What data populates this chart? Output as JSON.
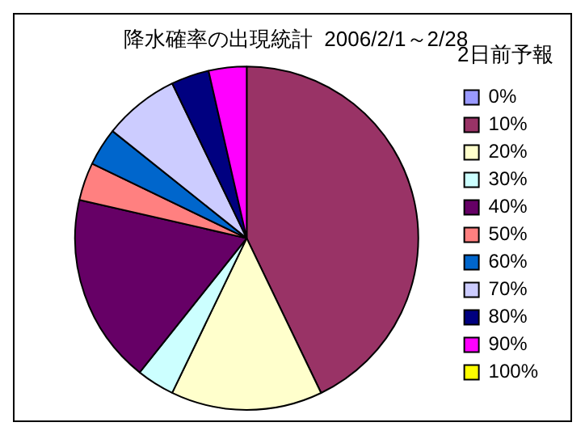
{
  "chart_data": {
    "type": "pie",
    "title": "降水確率の出現統計  2006/2/1～2/28",
    "legend_title": "2日前予報",
    "legend": "right",
    "categories": [
      "0%",
      "10%",
      "20%",
      "30%",
      "40%",
      "50%",
      "60%",
      "70%",
      "80%",
      "90%",
      "100%"
    ],
    "values": [
      0,
      42.86,
      14.29,
      3.57,
      17.86,
      3.57,
      3.57,
      7.14,
      3.57,
      3.57,
      0
    ],
    "colors": [
      "#9999ff",
      "#993366",
      "#ffffcc",
      "#ccffff",
      "#660066",
      "#ff8080",
      "#0066cc",
      "#ccccff",
      "#000080",
      "#ff00ff",
      "#ffff00"
    ]
  }
}
